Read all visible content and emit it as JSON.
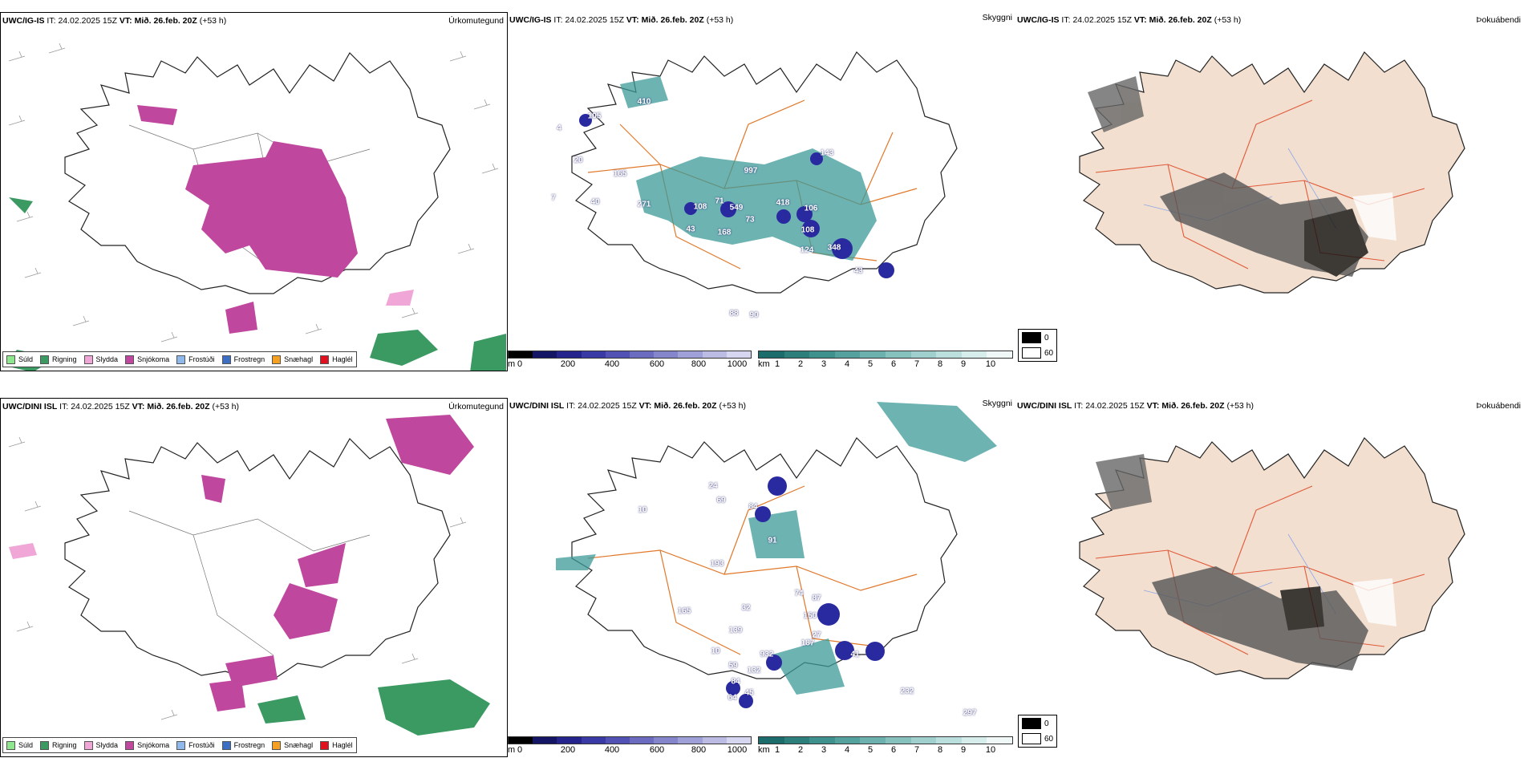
{
  "colors": {
    "snow": "#c0479e",
    "rain": "#3a9a62",
    "sleet": "#f0a6d6",
    "drizzle": "#8ee68e",
    "freezing_drizzle": "#8fb8ec",
    "freezing_rain": "#3c6fc4",
    "snow_grains": "#f5a020",
    "hail": "#e01020",
    "teal": "#3c9a98",
    "indigo": "#2a2aa0",
    "roads": "#e0782a",
    "land_cloud": "#f2dfcf"
  },
  "rows": [
    {
      "model": "UWC/IG-IS",
      "panels": [
        {
          "model": "UWC/IG-IS",
          "it_label": "IT:",
          "it": "24.02.2025 15Z",
          "vt_label": "VT:",
          "vt": "Mið. 26.feb. 20Z",
          "lead": "(+53 h)",
          "right_label": "Úrkomutegund"
        },
        {
          "model": "UWC/IG-IS",
          "it_label": "IT:",
          "it": "24.02.2025 15Z",
          "vt_label": "VT:",
          "vt": "Mið. 26.feb. 20Z",
          "lead": "(+53 h)",
          "right_label": "Skyggni"
        },
        {
          "model": "UWC/IG-IS",
          "it_label": "IT:",
          "it": "24.02.2025 15Z",
          "vt_label": "VT:",
          "vt": "Mið. 26.feb. 20Z",
          "lead": "(+53 h)",
          "right_label": "Þokuábendi"
        }
      ],
      "visibility_labels": [
        "410",
        "105",
        "20",
        "165",
        "997",
        "143",
        "271",
        "108",
        "71",
        "549",
        "418",
        "106",
        "73",
        "168",
        "43",
        "108",
        "124",
        "348",
        "43",
        "88",
        "90",
        "7",
        "40",
        "4"
      ]
    },
    {
      "model": "UWC/DINI ISL",
      "panels": [
        {
          "model": "UWC/DINI ISL",
          "it_label": "IT:",
          "it": "24.02.2025 15Z",
          "vt_label": "VT:",
          "vt": "Mið. 26.feb. 20Z",
          "lead": "(+53 h)",
          "right_label": "Úrkomutegund"
        },
        {
          "model": "UWC/DINI ISL",
          "it_label": "IT:",
          "it": "24.02.2025 15Z",
          "vt_label": "VT:",
          "vt": "Mið. 26.feb. 20Z",
          "lead": "(+53 h)",
          "right_label": "Skyggni"
        },
        {
          "model": "UWC/DINI ISL",
          "it_label": "IT:",
          "it": "24.02.2025 15Z",
          "vt_label": "VT:",
          "vt": "Mið. 26.feb. 20Z",
          "lead": "(+53 h)",
          "right_label": "Þokuábendi"
        }
      ],
      "visibility_labels": [
        "24",
        "69",
        "84",
        "91",
        "10",
        "193",
        "74",
        "87",
        "165",
        "32",
        "150",
        "139",
        "27",
        "187",
        "10",
        "932",
        "41",
        "59",
        "132",
        "84",
        "64",
        "45",
        "232",
        "297"
      ]
    }
  ],
  "precip_legend": [
    "Súld",
    "Rigning",
    "Slydda",
    "Snjókoma",
    "Frostúði",
    "Frostregn",
    "Snæhagl",
    "Haglél"
  ],
  "ceiling_scale": {
    "unit": "m",
    "ticks": [
      "0",
      "200",
      "400",
      "600",
      "800",
      "1000"
    ]
  },
  "visibility_scale": {
    "unit": "km",
    "ticks": [
      "1",
      "2",
      "3",
      "4",
      "5",
      "6",
      "7",
      "8",
      "9",
      "10"
    ]
  },
  "fog_key": [
    "0",
    "60"
  ]
}
